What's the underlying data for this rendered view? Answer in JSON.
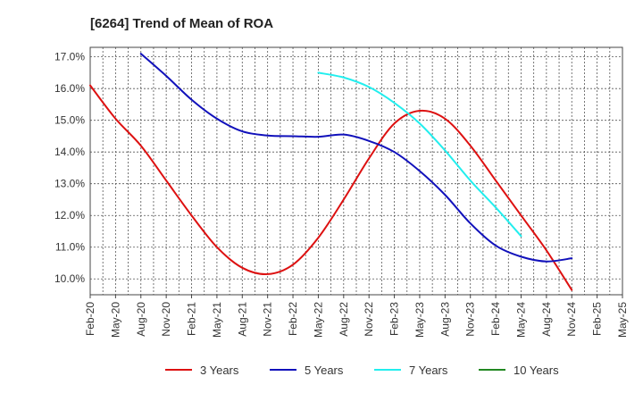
{
  "chart_data": {
    "type": "line",
    "title": "[6264]  Trend of Mean of ROA",
    "xlabel": "",
    "ylabel": "",
    "grid": true,
    "legend_position": "bottom",
    "x_tick_labels": [
      "Feb-20",
      "May-20",
      "Aug-20",
      "Nov-20",
      "Feb-21",
      "May-21",
      "Aug-21",
      "Nov-21",
      "Feb-22",
      "May-22",
      "Aug-22",
      "Nov-22",
      "Feb-23",
      "May-23",
      "Aug-23",
      "Nov-23",
      "Feb-24",
      "May-24",
      "Aug-24",
      "Nov-24",
      "Feb-25",
      "May-25"
    ],
    "y_ticks": [
      10.0,
      11.0,
      12.0,
      13.0,
      14.0,
      15.0,
      16.0,
      17.0
    ],
    "y_tick_labels": [
      "10.0%",
      "11.0%",
      "12.0%",
      "13.0%",
      "14.0%",
      "15.0%",
      "16.0%",
      "17.0%"
    ],
    "ylim": [
      9.5,
      17.3
    ],
    "series": [
      {
        "name": "3 Years",
        "color": "#dd1111",
        "start_index": 0,
        "values": [
          16.1,
          15.05,
          14.2,
          13.1,
          12.0,
          11.0,
          10.35,
          10.15,
          10.45,
          11.3,
          12.5,
          13.8,
          14.9,
          15.3,
          15.05,
          14.2,
          13.1,
          12.0,
          10.9,
          9.65
        ]
      },
      {
        "name": "5 Years",
        "color": "#1111bb",
        "start_index": 2,
        "values": [
          17.1,
          16.4,
          15.65,
          15.05,
          14.65,
          14.52,
          14.5,
          14.48,
          14.55,
          14.35,
          14.0,
          13.4,
          12.65,
          11.75,
          11.05,
          10.7,
          10.55,
          10.65
        ]
      },
      {
        "name": "7 Years",
        "color": "#22eeee",
        "start_index": 9,
        "values": [
          16.5,
          16.35,
          16.05,
          15.55,
          14.9,
          14.05,
          13.1,
          12.25,
          11.35
        ]
      },
      {
        "name": "10 Years",
        "color": "#228822",
        "start_index": 0,
        "values": []
      }
    ]
  }
}
